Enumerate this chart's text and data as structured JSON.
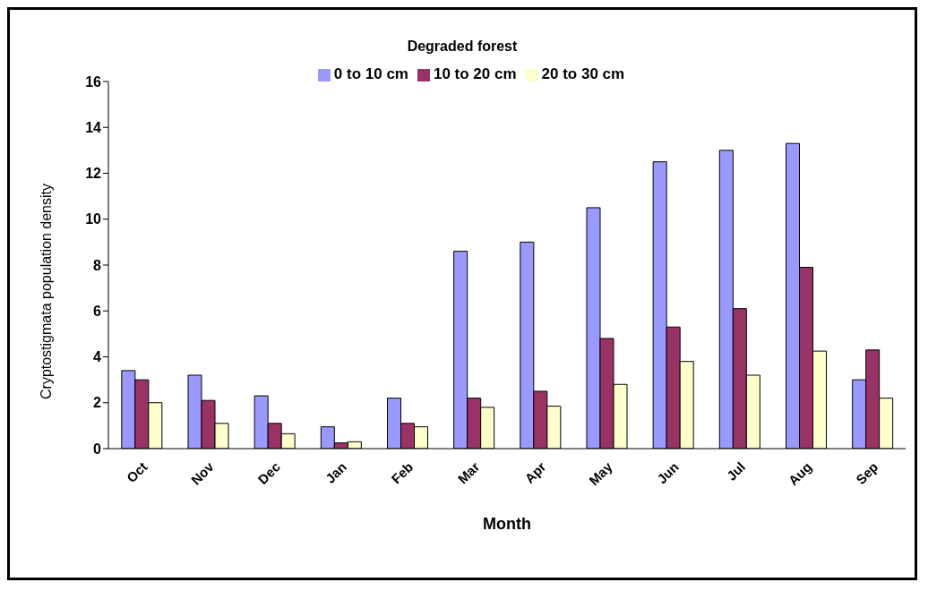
{
  "chart_data": {
    "type": "bar",
    "title": "Degraded forest",
    "xlabel": "Month",
    "ylabel": "Cryptostigmata population density",
    "categories": [
      "Oct",
      "Nov",
      "Dec",
      "Jan",
      "Feb",
      "Mar",
      "Apr",
      "May",
      "Jun",
      "Jul",
      "Aug",
      "Sep"
    ],
    "series": [
      {
        "name": "0  to 10 cm",
        "color": "#9999ff",
        "values": [
          3.4,
          3.2,
          2.3,
          0.95,
          2.2,
          8.6,
          9.0,
          10.5,
          12.5,
          13.0,
          13.3,
          3.0
        ]
      },
      {
        "name": "10 to 20 cm",
        "color": "#993366",
        "values": [
          3.0,
          2.1,
          1.1,
          0.25,
          1.1,
          2.2,
          2.5,
          4.8,
          5.3,
          6.1,
          7.9,
          4.3
        ]
      },
      {
        "name": "20 to 30 cm",
        "color": "#ffffcc",
        "values": [
          2.0,
          1.1,
          0.65,
          0.3,
          0.95,
          1.8,
          1.85,
          2.8,
          3.8,
          3.2,
          4.25,
          2.2
        ]
      }
    ],
    "ylim": [
      0,
      16
    ],
    "yticks": [
      0,
      2,
      4,
      6,
      8,
      10,
      12,
      14,
      16
    ],
    "grid": false,
    "legend": "top"
  }
}
